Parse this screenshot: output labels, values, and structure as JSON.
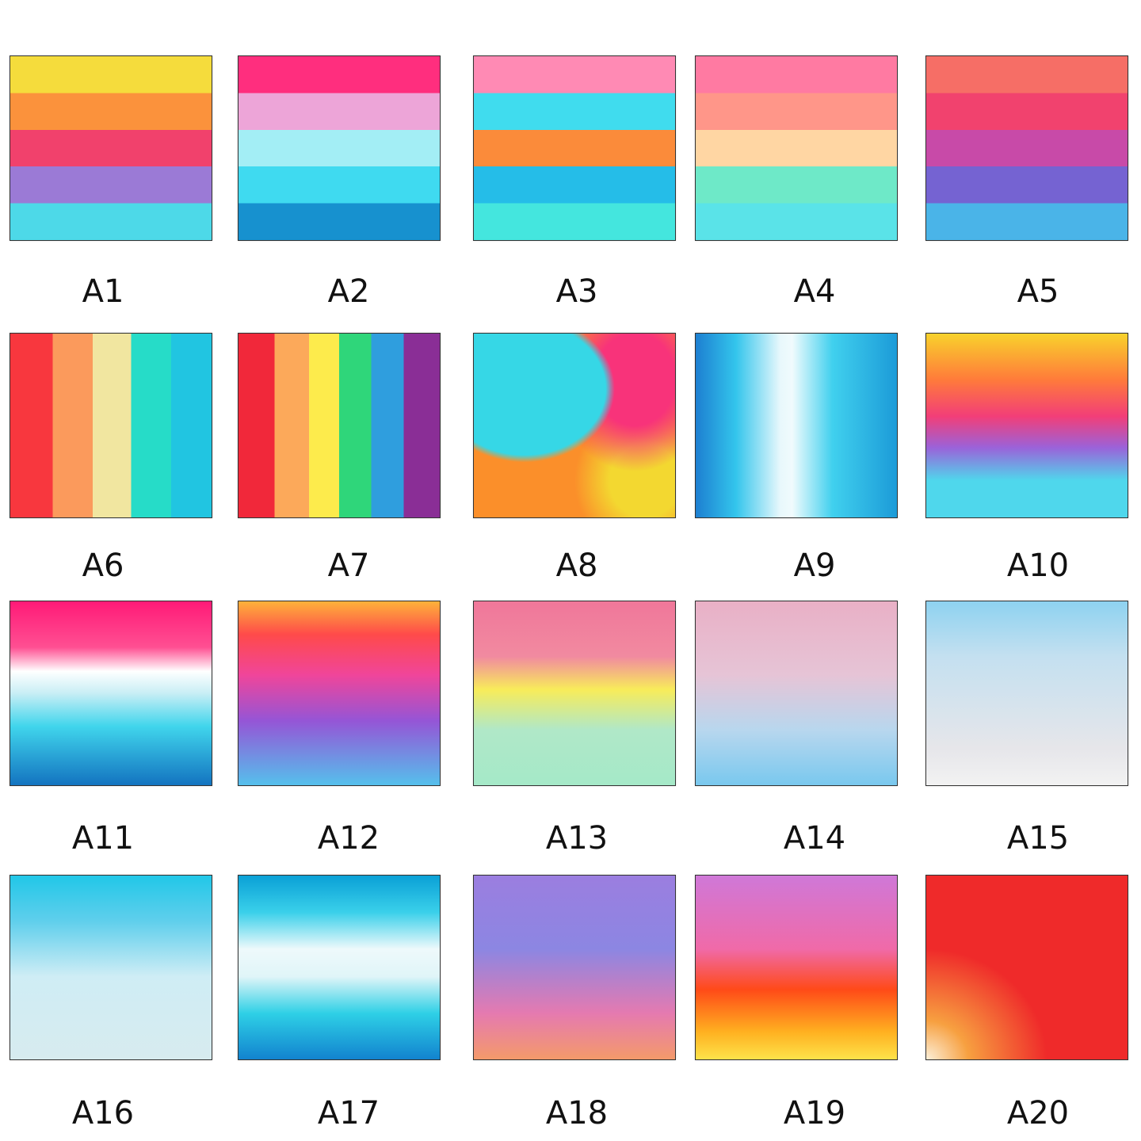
{
  "items": [
    {
      "label": "A1"
    },
    {
      "label": "A2"
    },
    {
      "label": "A3"
    },
    {
      "label": "A4"
    },
    {
      "label": "A5"
    },
    {
      "label": "A6"
    },
    {
      "label": "A7"
    },
    {
      "label": "A8"
    },
    {
      "label": "A9"
    },
    {
      "label": "A10"
    },
    {
      "label": "A11"
    },
    {
      "label": "A12"
    },
    {
      "label": "A13"
    },
    {
      "label": "A14"
    },
    {
      "label": "A15"
    },
    {
      "label": "A16"
    },
    {
      "label": "A17"
    },
    {
      "label": "A18"
    },
    {
      "label": "A19"
    },
    {
      "label": "A20"
    }
  ]
}
